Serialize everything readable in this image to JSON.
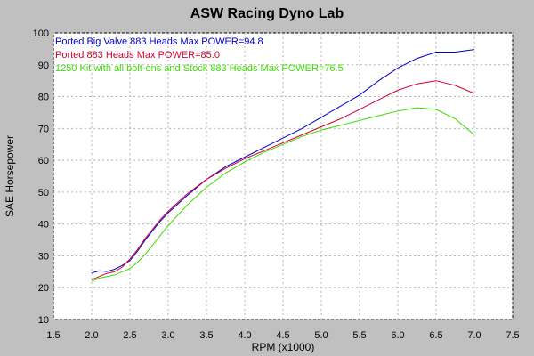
{
  "chart_data": {
    "type": "line",
    "title": "ASW Racing Dyno Lab",
    "xlabel": "RPM (x1000)",
    "ylabel": "SAE Horsepower",
    "xlim": [
      1.5,
      7.5
    ],
    "ylim": [
      10,
      100
    ],
    "xticks": [
      1.5,
      2.0,
      2.5,
      3.0,
      3.5,
      4.0,
      4.5,
      5.0,
      5.5,
      6.0,
      6.5,
      7.0,
      7.5
    ],
    "yticks": [
      10,
      20,
      30,
      40,
      50,
      60,
      70,
      80,
      90,
      100
    ],
    "grid": true,
    "legend_position": "top-left",
    "series": [
      {
        "name": "Ported Big Valve 883 Heads  Max POWER=94.8",
        "color": "#0000c8",
        "x": [
          2.0,
          2.1,
          2.2,
          2.3,
          2.4,
          2.5,
          2.6,
          2.7,
          2.8,
          2.9,
          3.0,
          3.25,
          3.5,
          3.75,
          4.0,
          4.25,
          4.5,
          4.75,
          5.0,
          5.25,
          5.5,
          5.75,
          6.0,
          6.25,
          6.5,
          6.75,
          7.0
        ],
        "y": [
          24.6,
          25.3,
          25.1,
          25.8,
          27.0,
          28.5,
          31.5,
          35.0,
          38.0,
          41.0,
          43.5,
          49.0,
          54.0,
          58.0,
          61.0,
          64.0,
          67.0,
          70.0,
          73.5,
          77.0,
          80.5,
          85.0,
          89.0,
          92.0,
          94.0,
          94.0,
          94.8
        ]
      },
      {
        "name": "Ported 883 Heads  Max POWER=85.0",
        "color": "#d00030",
        "x": [
          2.0,
          2.1,
          2.2,
          2.3,
          2.4,
          2.5,
          2.6,
          2.7,
          2.8,
          2.9,
          3.0,
          3.25,
          3.5,
          3.75,
          4.0,
          4.25,
          4.5,
          4.75,
          5.0,
          5.25,
          5.5,
          5.75,
          6.0,
          6.25,
          6.5,
          6.75,
          7.0
        ],
        "y": [
          22.5,
          23.5,
          24.5,
          25.0,
          26.5,
          29.0,
          32.0,
          35.5,
          38.5,
          41.5,
          44.0,
          49.5,
          54.0,
          57.5,
          60.5,
          63.0,
          65.5,
          68.0,
          70.5,
          73.0,
          76.0,
          79.0,
          82.0,
          84.0,
          85.0,
          83.5,
          81.0
        ]
      },
      {
        "name": "1250 Kit with all bolt-ons and Stock 883 Heads  Max POWER=76.5",
        "color": "#3cdc00",
        "x": [
          2.0,
          2.1,
          2.2,
          2.3,
          2.4,
          2.5,
          2.6,
          2.7,
          2.8,
          2.9,
          3.0,
          3.25,
          3.5,
          3.75,
          4.0,
          4.25,
          4.5,
          4.75,
          5.0,
          5.25,
          5.5,
          5.75,
          6.0,
          6.25,
          6.5,
          6.75,
          7.0
        ],
        "y": [
          22.0,
          23.0,
          23.5,
          24.0,
          25.0,
          26.0,
          28.0,
          30.5,
          33.5,
          36.5,
          39.5,
          46.0,
          51.5,
          56.0,
          59.5,
          62.5,
          65.0,
          67.5,
          69.5,
          71.0,
          72.5,
          74.0,
          75.5,
          76.5,
          76.0,
          73.0,
          68.0
        ]
      }
    ]
  }
}
